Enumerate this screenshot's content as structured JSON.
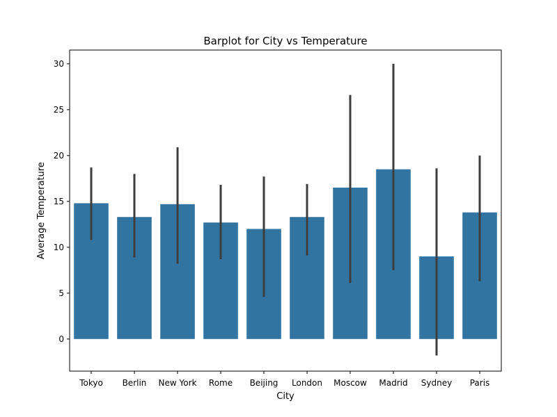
{
  "chart_data": {
    "type": "bar",
    "title": "Barplot for City vs Temperature",
    "xlabel": "City",
    "ylabel": "Average Temperature",
    "categories": [
      "Tokyo",
      "Berlin",
      "New York",
      "Rome",
      "Beijing",
      "London",
      "Moscow",
      "Madrid",
      "Sydney",
      "Paris"
    ],
    "values": [
      14.8,
      13.3,
      14.7,
      12.7,
      12.0,
      13.3,
      16.5,
      18.5,
      9.0,
      13.8
    ],
    "error_low": [
      10.8,
      8.9,
      8.2,
      8.7,
      4.6,
      9.1,
      6.1,
      7.5,
      -1.8,
      6.3
    ],
    "error_high": [
      18.7,
      18.0,
      20.9,
      16.8,
      17.7,
      16.9,
      26.6,
      30.0,
      18.6,
      20.0
    ],
    "ylim": [
      -3.5,
      31.5
    ],
    "yticks": [
      0,
      5,
      10,
      15,
      20,
      25,
      30
    ],
    "grid": false,
    "bar_color": "#3274a1",
    "error_color": "#3d3d3d"
  }
}
